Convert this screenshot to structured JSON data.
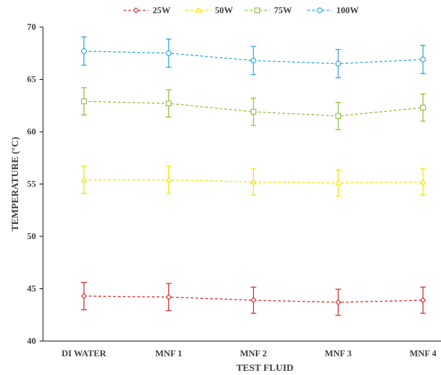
{
  "chart_data": {
    "type": "line",
    "categories": [
      "DI WATER",
      "MNF 1",
      "MNF 2",
      "MNF 3",
      "MNF 4"
    ],
    "series": [
      {
        "name": "25W",
        "color": "#d62728",
        "marker": "diamond",
        "values": [
          44.3,
          44.2,
          43.9,
          43.7,
          43.9
        ],
        "error": [
          1.3,
          1.3,
          1.25,
          1.25,
          1.25
        ]
      },
      {
        "name": "50W",
        "color": "#f2e400",
        "marker": "triangle",
        "values": [
          55.4,
          55.4,
          55.2,
          55.1,
          55.2
        ],
        "error": [
          1.3,
          1.3,
          1.25,
          1.25,
          1.25
        ]
      },
      {
        "name": "75W",
        "color": "#8cbf3f",
        "marker": "square",
        "values": [
          62.9,
          62.7,
          61.9,
          61.5,
          62.3
        ],
        "error": [
          1.3,
          1.3,
          1.3,
          1.3,
          1.3
        ]
      },
      {
        "name": "100W",
        "color": "#2ea4d8",
        "marker": "circle",
        "values": [
          67.7,
          67.5,
          66.8,
          66.5,
          66.9
        ],
        "error": [
          1.35,
          1.35,
          1.35,
          1.35,
          1.35
        ]
      }
    ],
    "title": "",
    "xlabel": "TEST FLUID",
    "ylabel": "TEMPERATURE (°C)",
    "ylim": [
      40,
      70
    ],
    "yticks": [
      40,
      45,
      50,
      55,
      60,
      65,
      70
    ],
    "grid": false,
    "legend_position": "top"
  }
}
